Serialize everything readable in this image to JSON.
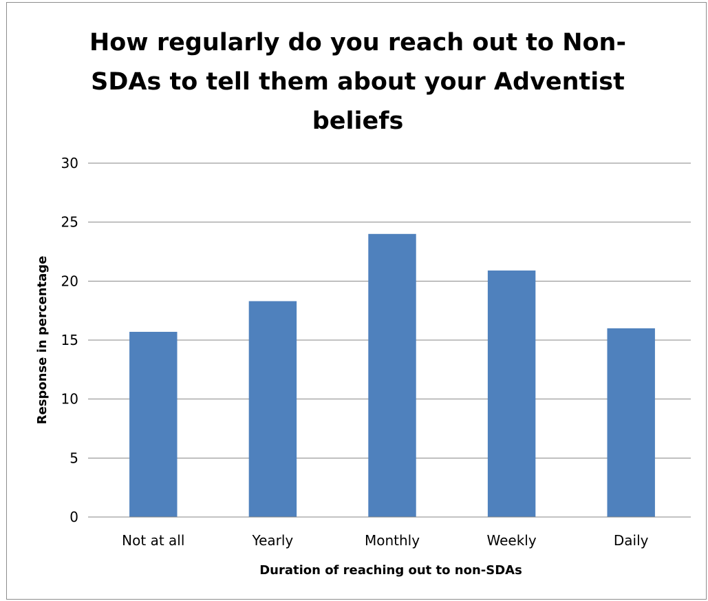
{
  "chart_data": {
    "type": "bar",
    "title": "How regularly do you reach out to Non-SDAs to tell them about your Adventist beliefs",
    "xlabel": "Duration of reaching out to non-SDAs",
    "ylabel": "Response in percentage",
    "categories": [
      "Not at all",
      "Yearly",
      "Monthly",
      "Weekly",
      "Daily"
    ],
    "values": [
      15.7,
      18.3,
      24,
      20.9,
      16
    ],
    "ylim": [
      0,
      30
    ],
    "yticks": [
      0,
      5,
      10,
      15,
      20,
      25,
      30
    ],
    "grid": true,
    "bar_color": "#4f81bd",
    "gridline_color": "#868686"
  }
}
